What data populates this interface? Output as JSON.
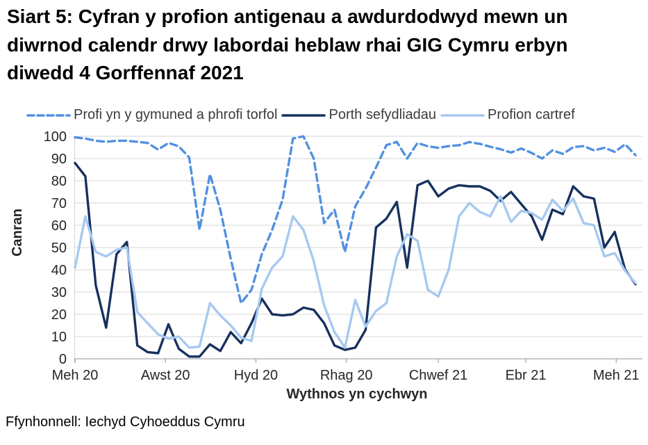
{
  "title": "Siart 5: Cyfran y profion antigenau a awdurdodwyd mewn un diwrnod calendr drwy labordai heblaw rhai GIG Cymru erbyn diwedd 4 Gorffennaf 2021",
  "source": "Ffynhonnell: Iechyd Cyhoeddus Cymru",
  "colors": {
    "community_series": "#5291E0",
    "portal_series": "#17315F",
    "home_series": "#A6C9F0",
    "gridline": "#D6D6D6",
    "axis": "#A6A6A6",
    "tick_text": "#262626"
  },
  "chart_data": {
    "type": "line",
    "title": "Siart 5: Cyfran y profion antigenau a awdurdodwyd mewn un diwrnod calendr drwy labordai heblaw rhai GIG Cymru erbyn diwedd 4 Gorffennaf 2021",
    "xlabel": "Wythnos yn cychwyn",
    "ylabel": "Canran",
    "ylim": [
      0,
      100
    ],
    "y_ticks": [
      0,
      10,
      20,
      30,
      40,
      50,
      60,
      70,
      80,
      90,
      100
    ],
    "grid": true,
    "legend_position": "top",
    "x_unit": "week",
    "weeks_total": 55,
    "x_ticks": [
      {
        "label": "Meh 20",
        "week": 0
      },
      {
        "label": "Awst 20",
        "week": 8.71
      },
      {
        "label": "Hyd 20",
        "week": 17.43
      },
      {
        "label": "Rhag 20",
        "week": 26.14
      },
      {
        "label": "Chwef 21",
        "week": 35.0
      },
      {
        "label": "Ebr 21",
        "week": 43.43
      },
      {
        "label": "Meh 21",
        "week": 52.14
      }
    ],
    "series": [
      {
        "name": "Profi yn y gymuned a phrofi torfol",
        "style": "dashed",
        "color": "#5291E0",
        "values": [
          99.5,
          99,
          98,
          97.5,
          98,
          98,
          97.5,
          97,
          94,
          97,
          95.5,
          90.5,
          58,
          83,
          67,
          45,
          25,
          31,
          47,
          58,
          71.5,
          99,
          100,
          90,
          61,
          67,
          48,
          68.5,
          76.5,
          86,
          96,
          97.5,
          90,
          97,
          95.5,
          94.8,
          95.6,
          96,
          97.4,
          96.6,
          95.3,
          94.2,
          92.7,
          94.5,
          92.5,
          90,
          93.7,
          92.1,
          95.1,
          95.6,
          93.7,
          94.8,
          93,
          96.4,
          91.5
        ]
      },
      {
        "name": "Porth sefydliadau",
        "style": "solid",
        "color": "#17315F",
        "values": [
          88,
          82,
          33,
          14,
          47,
          52.5,
          6,
          3,
          2.5,
          15.5,
          4.5,
          1,
          1,
          6.5,
          3.5,
          12,
          7,
          16,
          27,
          20,
          19.5,
          20,
          23,
          22,
          16,
          6,
          4,
          5,
          13,
          59,
          63,
          70.5,
          41,
          78,
          80,
          73,
          76.5,
          78,
          77.5,
          77.5,
          75.5,
          71,
          75,
          69.5,
          64,
          53.5,
          67,
          65,
          77.5,
          73,
          72,
          50,
          57,
          40,
          33.5
        ]
      },
      {
        "name": "Profion cartref",
        "style": "solid",
        "color": "#A6C9F0",
        "values": [
          41,
          64,
          48,
          46,
          49,
          50,
          21,
          16,
          11,
          9,
          10,
          5,
          5.5,
          25,
          19.5,
          15,
          9.5,
          8,
          31.5,
          41,
          46,
          64,
          58,
          44,
          24,
          12,
          5,
          26.5,
          14.5,
          21.5,
          25,
          46,
          56,
          53,
          31,
          28,
          40,
          64,
          70,
          66,
          64,
          73,
          61.5,
          66.5,
          65.5,
          62.5,
          71.5,
          66.5,
          72,
          61,
          60,
          46,
          47.5,
          39.5,
          34
        ]
      }
    ]
  }
}
